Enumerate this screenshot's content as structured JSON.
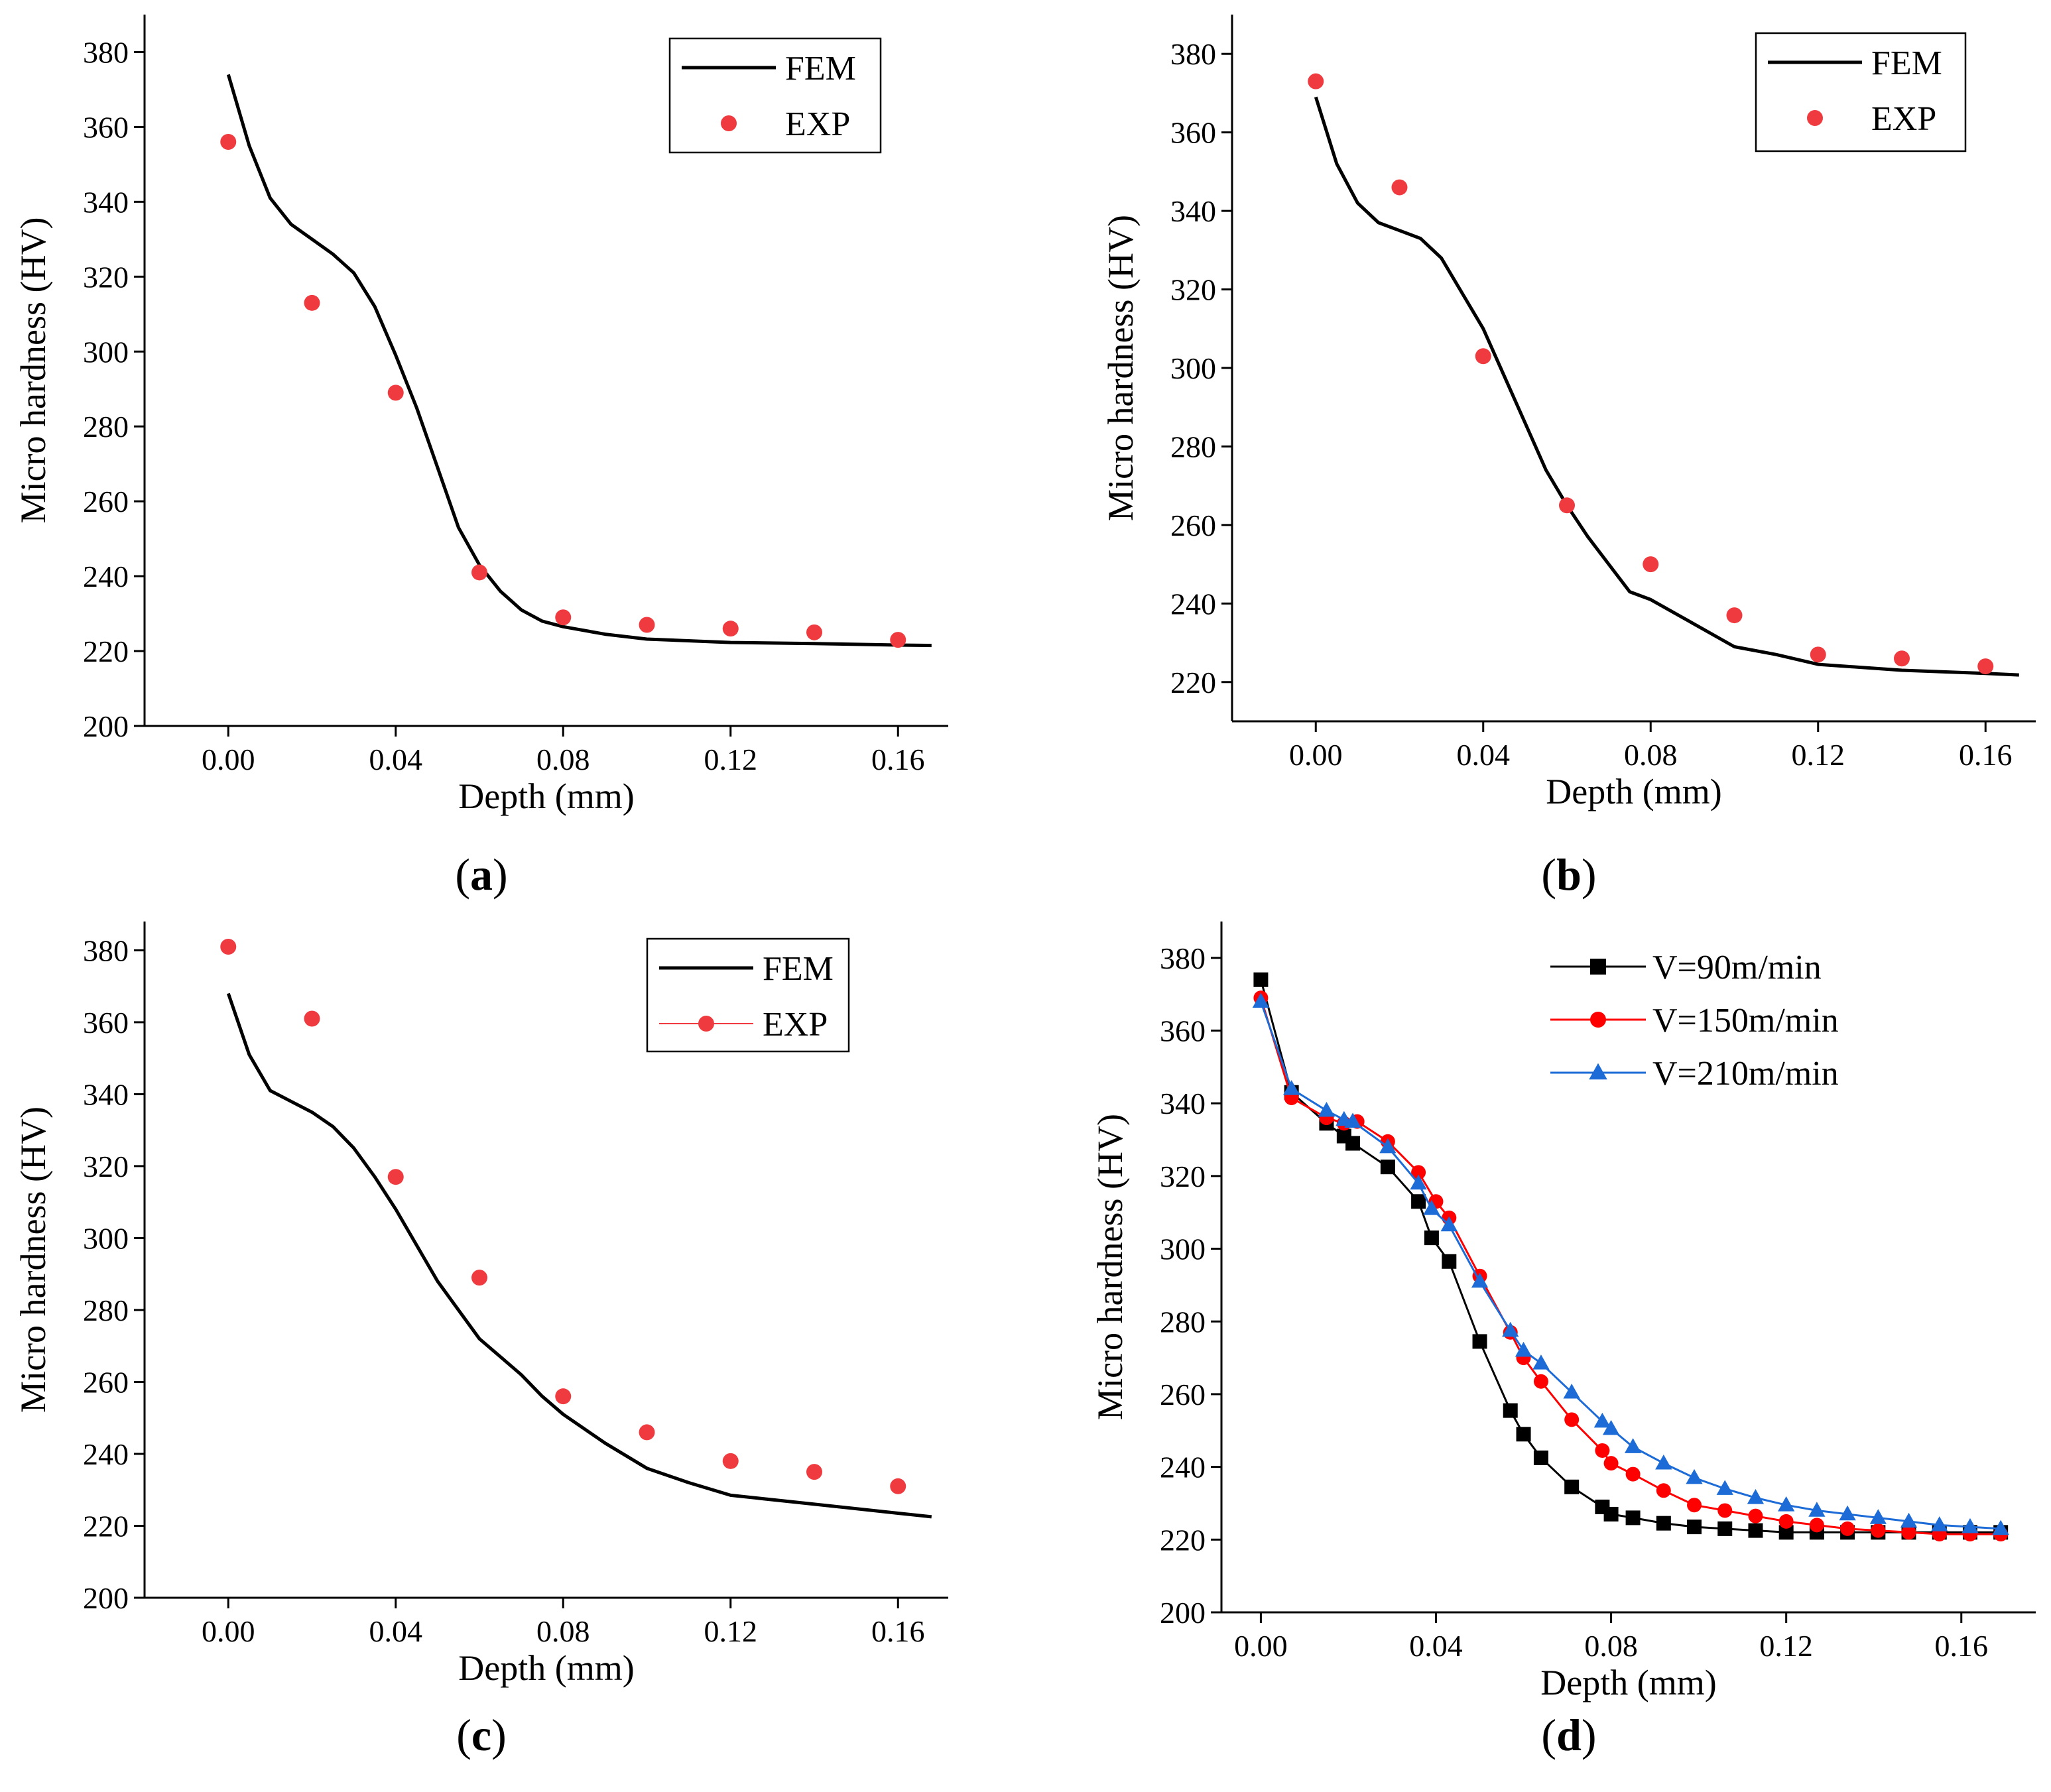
{
  "figure": {
    "panels_order": [
      "a",
      "b",
      "c",
      "d"
    ]
  },
  "chart_data": [
    {
      "id": "a",
      "panel_label": "a",
      "type": "line",
      "xlabel": "Depth (mm)",
      "ylabel": "Micro hardness (HV)",
      "xlim": [
        -0.02,
        0.172
      ],
      "ylim": [
        200,
        390
      ],
      "xticks": [
        0.0,
        0.04,
        0.08,
        0.12,
        0.16
      ],
      "xtick_labels": [
        "0.00",
        "0.04",
        "0.08",
        "0.12",
        "0.16"
      ],
      "yticks": [
        200,
        220,
        240,
        260,
        280,
        300,
        320,
        340,
        360,
        380
      ],
      "ytick_labels": [
        "200",
        "220",
        "240",
        "260",
        "280",
        "300",
        "320",
        "340",
        "360",
        "380"
      ],
      "legend": {
        "position": "top-right"
      },
      "series": [
        {
          "name": "FEM",
          "kind": "line",
          "color": "#000000",
          "x": [
            0.0,
            0.005,
            0.01,
            0.015,
            0.02,
            0.025,
            0.03,
            0.035,
            0.04,
            0.045,
            0.05,
            0.055,
            0.06,
            0.065,
            0.07,
            0.075,
            0.08,
            0.09,
            0.1,
            0.12,
            0.14,
            0.16,
            0.168
          ],
          "y": [
            374,
            355,
            341,
            334,
            330,
            326,
            321,
            312,
            299,
            285,
            269,
            253,
            243,
            236,
            231,
            228,
            226.5,
            224.5,
            223.2,
            222.3,
            222,
            221.6,
            221.5
          ]
        },
        {
          "name": "EXP",
          "kind": "scatter",
          "color": "#ef3b3f",
          "marker": "circle",
          "x": [
            0.0,
            0.02,
            0.04,
            0.06,
            0.08,
            0.1,
            0.12,
            0.14,
            0.16
          ],
          "y": [
            356,
            313,
            289,
            241,
            229,
            227,
            226,
            225,
            223
          ]
        }
      ]
    },
    {
      "id": "b",
      "panel_label": "b",
      "type": "line",
      "xlabel": "Depth (mm)",
      "ylabel": "Micro hardness (HV)",
      "xlim": [
        -0.02,
        0.172
      ],
      "ylim": [
        210,
        390
      ],
      "xticks": [
        0.0,
        0.04,
        0.08,
        0.12,
        0.16
      ],
      "xtick_labels": [
        "0.00",
        "0.04",
        "0.08",
        "0.12",
        "0.16"
      ],
      "yticks": [
        220,
        240,
        260,
        280,
        300,
        320,
        340,
        360,
        380
      ],
      "ytick_labels": [
        "220",
        "240",
        "260",
        "280",
        "300",
        "320",
        "340",
        "360",
        "380"
      ],
      "legend": {
        "position": "top-right"
      },
      "series": [
        {
          "name": "FEM",
          "kind": "line",
          "color": "#000000",
          "x": [
            0.0,
            0.005,
            0.01,
            0.015,
            0.02,
            0.025,
            0.03,
            0.035,
            0.04,
            0.045,
            0.05,
            0.055,
            0.06,
            0.065,
            0.07,
            0.075,
            0.08,
            0.09,
            0.1,
            0.11,
            0.12,
            0.14,
            0.16,
            0.168
          ],
          "y": [
            369,
            352,
            342,
            337,
            335,
            333,
            328,
            319,
            310,
            298,
            286,
            274,
            265,
            257,
            250,
            243,
            241,
            235,
            229,
            227,
            224.5,
            223,
            222.2,
            221.8
          ]
        },
        {
          "name": "EXP",
          "kind": "scatter",
          "color": "#ef3b3f",
          "marker": "circle",
          "x": [
            0.0,
            0.02,
            0.04,
            0.06,
            0.08,
            0.1,
            0.12,
            0.14,
            0.16
          ],
          "y": [
            373,
            346,
            303,
            265,
            250,
            237,
            227,
            226,
            224
          ]
        }
      ]
    },
    {
      "id": "c",
      "panel_label": "c",
      "type": "line",
      "xlabel": "Depth (mm)",
      "ylabel": "Micro hardness (HV)",
      "xlim": [
        -0.02,
        0.172
      ],
      "ylim": [
        200,
        388
      ],
      "xticks": [
        0.0,
        0.04,
        0.08,
        0.12,
        0.16
      ],
      "xtick_labels": [
        "0.00",
        "0.04",
        "0.08",
        "0.12",
        "0.16"
      ],
      "yticks": [
        200,
        220,
        240,
        260,
        280,
        300,
        320,
        340,
        360,
        380
      ],
      "ytick_labels": [
        "200",
        "220",
        "240",
        "260",
        "280",
        "300",
        "320",
        "340",
        "360",
        "380"
      ],
      "legend": {
        "position": "top-right"
      },
      "series": [
        {
          "name": "FEM",
          "kind": "line",
          "color": "#000000",
          "x": [
            0.0,
            0.005,
            0.01,
            0.015,
            0.02,
            0.025,
            0.03,
            0.035,
            0.04,
            0.045,
            0.05,
            0.055,
            0.06,
            0.065,
            0.07,
            0.075,
            0.08,
            0.09,
            0.1,
            0.11,
            0.12,
            0.14,
            0.16,
            0.168
          ],
          "y": [
            368,
            351,
            341,
            338,
            335,
            331,
            325,
            317,
            308,
            298,
            288,
            280,
            272,
            267,
            262,
            256,
            251,
            243,
            236,
            232,
            228.5,
            226,
            223.5,
            222.5
          ]
        },
        {
          "name": "EXP",
          "kind": "scatter",
          "color": "#ef3b3f",
          "marker": "circle",
          "legend_line": true,
          "x": [
            0.0,
            0.02,
            0.04,
            0.06,
            0.08,
            0.1,
            0.12,
            0.14,
            0.16
          ],
          "y": [
            381,
            361,
            317,
            289,
            256,
            246,
            238,
            235,
            231
          ]
        }
      ]
    },
    {
      "id": "d",
      "panel_label": "d",
      "type": "line",
      "xlabel": "Depth (mm)",
      "ylabel": "Micro hardness (HV)",
      "xlim": [
        -0.009,
        0.177
      ],
      "ylim": [
        200,
        390
      ],
      "xticks": [
        0.0,
        0.04,
        0.08,
        0.12,
        0.16
      ],
      "xtick_labels": [
        "0.00",
        "0.04",
        "0.08",
        "0.12",
        "0.16"
      ],
      "yticks": [
        200,
        220,
        240,
        260,
        280,
        300,
        320,
        340,
        360,
        380
      ],
      "ytick_labels": [
        "200",
        "220",
        "240",
        "260",
        "280",
        "300",
        "320",
        "340",
        "360",
        "380"
      ],
      "legend": {
        "position": "top-right"
      },
      "series": [
        {
          "name": "V=90m/min",
          "kind": "line-marker",
          "color": "#000000",
          "marker": "square",
          "x": [
            0.0,
            0.007,
            0.015,
            0.019,
            0.021,
            0.029,
            0.036,
            0.039,
            0.043,
            0.05,
            0.057,
            0.06,
            0.064,
            0.071,
            0.078,
            0.08,
            0.085,
            0.092,
            0.099,
            0.106,
            0.113,
            0.12,
            0.127,
            0.134,
            0.141,
            0.148,
            0.155,
            0.162,
            0.169
          ],
          "y": [
            374,
            343,
            334.5,
            331,
            329,
            322.5,
            313,
            303,
            296.5,
            274.5,
            255.5,
            249,
            242.5,
            234.5,
            229,
            227,
            226,
            224.5,
            223.5,
            223,
            222.5,
            222,
            222,
            222,
            222,
            222,
            222,
            222,
            222
          ]
        },
        {
          "name": "V=150m/min",
          "kind": "line-marker",
          "color": "#ff0000",
          "marker": "circle",
          "x": [
            0.0,
            0.007,
            0.015,
            0.019,
            0.022,
            0.029,
            0.036,
            0.04,
            0.043,
            0.05,
            0.057,
            0.06,
            0.064,
            0.071,
            0.078,
            0.08,
            0.085,
            0.092,
            0.099,
            0.106,
            0.113,
            0.12,
            0.127,
            0.134,
            0.141,
            0.148,
            0.155,
            0.162,
            0.169
          ],
          "y": [
            369,
            341.5,
            336,
            334.5,
            335,
            329.5,
            321,
            313,
            308.5,
            292.5,
            277,
            270,
            263.5,
            253,
            244.5,
            241,
            238,
            233.5,
            229.5,
            228,
            226.5,
            225,
            224,
            223,
            222.5,
            222,
            221.5,
            221.5,
            221.5
          ]
        },
        {
          "name": "V=210m/min",
          "kind": "line-marker",
          "color": "#1c6bd6",
          "marker": "triangle",
          "x": [
            0.0,
            0.007,
            0.015,
            0.019,
            0.021,
            0.029,
            0.036,
            0.039,
            0.043,
            0.05,
            0.057,
            0.06,
            0.064,
            0.071,
            0.078,
            0.08,
            0.085,
            0.092,
            0.099,
            0.106,
            0.113,
            0.12,
            0.127,
            0.134,
            0.141,
            0.148,
            0.155,
            0.162,
            0.169
          ],
          "y": [
            368,
            344,
            338,
            335.5,
            335,
            328,
            318,
            311,
            306.5,
            291,
            277.5,
            272,
            268.5,
            260.5,
            252.5,
            250.5,
            245.5,
            241,
            237,
            234,
            231.5,
            229.5,
            228,
            227,
            226,
            225,
            224,
            223.5,
            223
          ]
        }
      ]
    }
  ]
}
